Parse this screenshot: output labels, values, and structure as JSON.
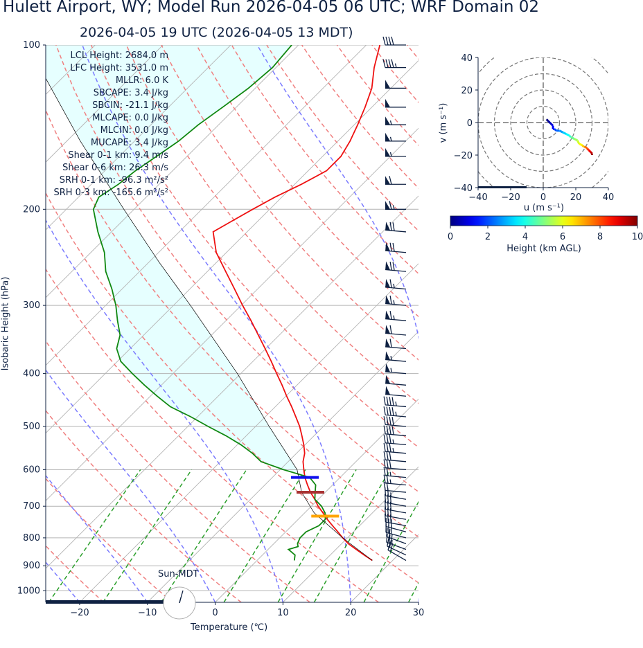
{
  "header": {
    "title": "Hulett Airport, WY; Model Run 2026-04-05 06 UTC; WRF Domain 02",
    "subtitle": "2026-04-05 19 UTC  (2026-04-05 13 MDT)"
  },
  "axes": {
    "ylabel": "Isobaric Height (hPa)",
    "xlabel": "Temperature (℃)",
    "pressure_ticks": [
      100,
      200,
      300,
      400,
      500,
      600,
      700,
      800,
      900,
      1000
    ],
    "temp_ticks": [
      -20,
      -10,
      0,
      10,
      20,
      30
    ]
  },
  "stats": [
    "LCL Height: 2684.0 m",
    "LFC Height: 3531.0 m",
    "MLLR: 6.0 K",
    "SBCAPE: 3.4 J/kg",
    "SBCIN: -21.1 J/kg",
    "MLCAPE: 0.0 J/kg",
    "MLCIN: 0.0 J/kg",
    "MUCAPE: 3.4 J/kg",
    "Shear 0-1 km: 9.4 m/s",
    "Shear 0-6 km: 26.3 m/s",
    "SRH 0-1 km: -96.3 m²/s²",
    "SRH 0-3 km: -165.6 m²/s²"
  ],
  "sun_label": "Sun-MDT",
  "hodograph": {
    "ylabel": "v (m s⁻¹)",
    "xlabel": "u (m s⁻¹)",
    "ticks": [
      -40,
      -20,
      0,
      20,
      40
    ]
  },
  "colorbar": {
    "label": "Height (km AGL)",
    "ticks": [
      0,
      2,
      4,
      6,
      8,
      10
    ]
  },
  "colors": {
    "temperature": "#ee1111",
    "dewpoint": "#118811",
    "parcel": "#000000",
    "cape_fill": "#e6ffff",
    "dry_adiabat": "#f08080",
    "moist_adiabat": "#7b7bff",
    "mixing_ratio": "#2ca02c",
    "isotherm": "#b4b4b4",
    "barb": "#0f2142",
    "lcl_marker": "#1010ee",
    "lfc_marker": "#a83232",
    "el_marker": "#ffa500"
  },
  "chart_data": [
    {
      "type": "line",
      "title": "Hulett Airport, WY; Model Run 2026-04-05 06 UTC; WRF Domain 02",
      "subtitle": "2026-04-05 19 UTC  (2026-04-05 13 MDT)",
      "xlabel": "Temperature (℃)",
      "ylabel": "Isobaric Height (hPa)",
      "xlim": [
        -25,
        30
      ],
      "ylim": [
        1050,
        100
      ],
      "yscale": "log",
      "skew": true,
      "grid": true,
      "series": [
        {
          "name": "Temperature",
          "pressure": [
            880,
            860,
            840,
            820,
            800,
            780,
            760,
            740,
            720,
            700,
            680,
            660,
            640,
            620,
            600,
            580,
            560,
            540,
            520,
            500,
            480,
            460,
            440,
            420,
            400,
            380,
            360,
            340,
            320,
            300,
            280,
            260,
            240,
            220,
            210,
            200,
            190,
            180,
            170,
            160,
            150,
            140,
            130,
            120,
            110,
            100
          ],
          "values": [
            17.0,
            15.0,
            13.0,
            11.0,
            9.3,
            7.7,
            6.0,
            4.3,
            2.7,
            1.0,
            -0.5,
            -2.2,
            -3.7,
            -5.2,
            -6.5,
            -7.8,
            -8.8,
            -10.2,
            -11.8,
            -13.5,
            -15.5,
            -17.6,
            -19.9,
            -22.2,
            -24.7,
            -27.3,
            -30.1,
            -33.1,
            -36.3,
            -39.8,
            -43.4,
            -47.3,
            -51.5,
            -55.0,
            -53.8,
            -52.5,
            -51.0,
            -49.0,
            -47.3,
            -47.3,
            -48.2,
            -49.5,
            -51.0,
            -52.8,
            -55.5,
            -58.0
          ]
        },
        {
          "name": "Dewpoint",
          "pressure": [
            880,
            860,
            840,
            830,
            820,
            800,
            780,
            760,
            740,
            720,
            700,
            680,
            660,
            640,
            620,
            600,
            580,
            560,
            540,
            520,
            500,
            480,
            460,
            440,
            420,
            400,
            380,
            360,
            340,
            320,
            300,
            280,
            260,
            240,
            220,
            200,
            190,
            180,
            170,
            160,
            150,
            140,
            130,
            120,
            110,
            100
          ],
          "values": [
            5.5,
            4.8,
            3.0,
            4.0,
            3.5,
            3.0,
            3.0,
            4.0,
            4.0,
            3.0,
            1.5,
            -0.5,
            -1.5,
            -2.5,
            -4.5,
            -9.5,
            -14.0,
            -16.5,
            -19.5,
            -23.0,
            -27.0,
            -31.0,
            -35.5,
            -39.0,
            -42.5,
            -46.0,
            -49.5,
            -52.0,
            -53.5,
            -56.0,
            -58.5,
            -61.5,
            -65.0,
            -68.0,
            -72.0,
            -76.0,
            -77.0,
            -76.0,
            -75.5,
            -74.5,
            -73.5,
            -73.0,
            -72.0,
            -71.0,
            -70.5,
            -71.0
          ]
        },
        {
          "name": "Parcel",
          "pressure": [
            880,
            800,
            720,
            660,
            600,
            500,
            400,
            300,
            250,
            200,
            150,
            100
          ],
          "values": [
            17.0,
            9.3,
            1.4,
            -3.5,
            -7.5,
            -18.0,
            -30.5,
            -47.5,
            -58.5,
            -71.5,
            -88.0,
            -110.0
          ]
        }
      ],
      "markers": [
        {
          "name": "LCL",
          "pressure": 620
        },
        {
          "name": "LFC",
          "pressure": 660
        },
        {
          "name": "EL",
          "pressure": 730
        }
      ],
      "wind_barbs": {
        "pressure": [
          880,
          860,
          840,
          820,
          800,
          780,
          760,
          740,
          720,
          700,
          680,
          660,
          640,
          620,
          600,
          580,
          560,
          540,
          520,
          500,
          480,
          460,
          440,
          420,
          400,
          380,
          360,
          340,
          320,
          300,
          280,
          260,
          240,
          220,
          200,
          180,
          160,
          150,
          140,
          130,
          120,
          110,
          100
        ],
        "speed_kt": [
          20,
          22,
          25,
          25,
          28,
          30,
          30,
          30,
          30,
          28,
          25,
          20,
          25,
          25,
          30,
          30,
          35,
          35,
          40,
          40,
          45,
          45,
          50,
          50,
          55,
          55,
          60,
          60,
          65,
          65,
          65,
          70,
          70,
          70,
          65,
          60,
          55,
          55,
          55,
          50,
          50,
          45,
          40
        ],
        "dir_deg": [
          300,
          295,
          290,
          290,
          285,
          285,
          280,
          280,
          280,
          280,
          280,
          275,
          275,
          275,
          275,
          275,
          275,
          275,
          275,
          275,
          275,
          275,
          275,
          275,
          275,
          275,
          275,
          275,
          275,
          275,
          275,
          275,
          275,
          275,
          270,
          270,
          270,
          270,
          270,
          270,
          270,
          270,
          270
        ]
      }
    },
    {
      "type": "line",
      "title": "",
      "xlabel": "u (m s⁻¹)",
      "ylabel": "v (m s⁻¹)",
      "xlim": [
        -40,
        40
      ],
      "ylim": [
        -40,
        40
      ],
      "series": [
        {
          "name": "",
          "u": [
            2,
            3,
            4,
            5,
            6,
            6,
            7,
            8,
            10,
            12,
            14,
            16,
            17,
            19,
            21,
            22,
            24,
            25,
            26,
            27,
            28,
            29,
            30,
            30
          ],
          "v": [
            2,
            1,
            0,
            -1,
            -2,
            -4,
            -4,
            -5,
            -5,
            -6,
            -7,
            -8,
            -9,
            -10,
            -11,
            -13,
            -14,
            -15,
            -15,
            -16,
            -17,
            -18,
            -19,
            -20
          ],
          "height_km": [
            0.0,
            0.3,
            0.6,
            0.9,
            1.2,
            1.5,
            1.9,
            2.3,
            2.8,
            3.3,
            3.8,
            4.3,
            4.8,
            5.3,
            5.8,
            6.3,
            6.8,
            7.3,
            7.8,
            8.3,
            8.8,
            9.3,
            9.7,
            10.0
          ]
        }
      ]
    }
  ]
}
